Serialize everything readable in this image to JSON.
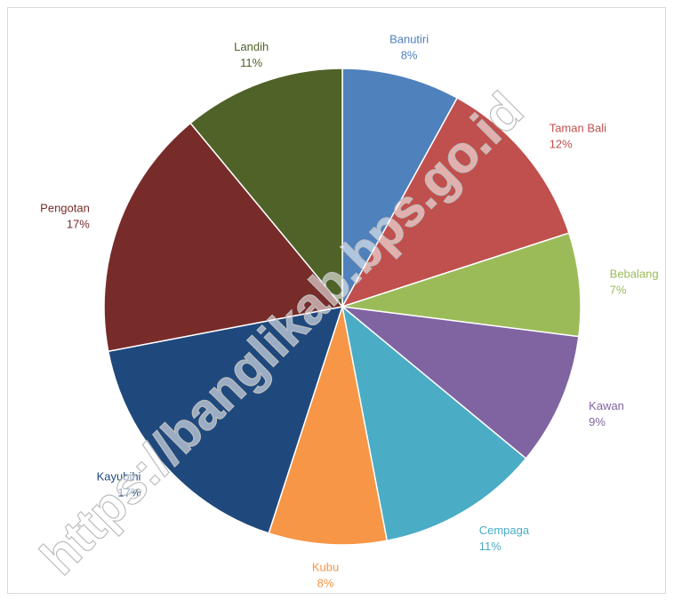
{
  "chart_data": {
    "type": "pie",
    "slices": [
      {
        "label": "Banutiri",
        "value": 8,
        "value_label": "8%",
        "color": "#4f81bd",
        "label_color": "#4f81bd"
      },
      {
        "label": "Taman Bali",
        "value": 12,
        "value_label": "12%",
        "color": "#c0504d",
        "label_color": "#c0504d"
      },
      {
        "label": "Bebalang",
        "value": 7,
        "value_label": "7%",
        "color": "#9bbb59",
        "label_color": "#9bbb59"
      },
      {
        "label": "Kawan",
        "value": 9,
        "value_label": "9%",
        "color": "#8064a2",
        "label_color": "#8064a2"
      },
      {
        "label": "Cempaga",
        "value": 11,
        "value_label": "11%",
        "color": "#4bacc6",
        "label_color": "#4bacc6"
      },
      {
        "label": "Kubu",
        "value": 8,
        "value_label": "8%",
        "color": "#f79646",
        "label_color": "#f79646"
      },
      {
        "label": "Kayubihi",
        "value": 17,
        "value_label": "17%",
        "color": "#1f497d",
        "label_color": "#1f497d"
      },
      {
        "label": "Pengotan",
        "value": 17,
        "value_label": "17%",
        "color": "#772c2a",
        "label_color": "#772c2a"
      },
      {
        "label": "Landih",
        "value": 11,
        "value_label": "11%",
        "color": "#4f6228",
        "label_color": "#4f6228"
      }
    ],
    "start_angle_deg": 0,
    "direction": "clockwise"
  },
  "watermark": {
    "text": "https://banglikab.bps.go.id"
  }
}
